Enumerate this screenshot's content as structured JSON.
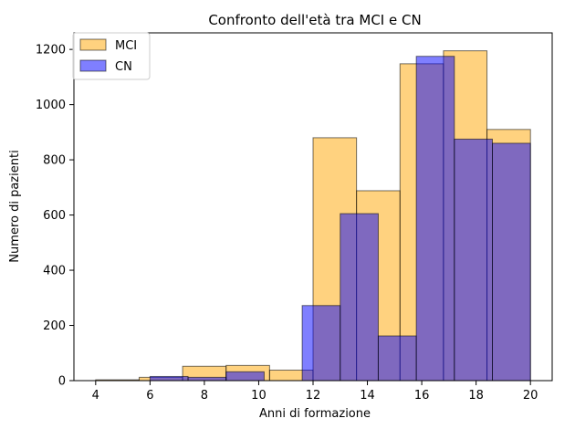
{
  "chart_data": {
    "type": "bar",
    "title": "Confronto dell'età tra MCI e CN",
    "xlabel": "Anni di formazione",
    "ylabel": "Numero di pazienti",
    "xlim": [
      3.2,
      20.8
    ],
    "ylim": [
      0,
      1260
    ],
    "xticks": [
      4,
      6,
      8,
      10,
      12,
      14,
      16,
      18,
      20
    ],
    "yticks": [
      0,
      200,
      400,
      600,
      800,
      1000,
      1200
    ],
    "grid": false,
    "legend_position": "top-left",
    "series": [
      {
        "name": "MCI",
        "color": "#ffa500",
        "opacity": 0.5,
        "bins": [
          {
            "x0": 4.0,
            "x1": 5.6,
            "value": 3
          },
          {
            "x0": 5.6,
            "x1": 7.2,
            "value": 12
          },
          {
            "x0": 7.2,
            "x1": 8.8,
            "value": 52
          },
          {
            "x0": 8.8,
            "x1": 10.4,
            "value": 55
          },
          {
            "x0": 10.4,
            "x1": 12.0,
            "value": 38
          },
          {
            "x0": 12.0,
            "x1": 13.6,
            "value": 880
          },
          {
            "x0": 13.6,
            "x1": 15.2,
            "value": 688
          },
          {
            "x0": 15.2,
            "x1": 16.8,
            "value": 1148
          },
          {
            "x0": 16.8,
            "x1": 18.4,
            "value": 1195
          },
          {
            "x0": 18.4,
            "x1": 20.0,
            "value": 910
          }
        ]
      },
      {
        "name": "CN",
        "color": "#0000ff",
        "opacity": 0.5,
        "bins": [
          {
            "x0": 6.0,
            "x1": 7.4,
            "value": 15
          },
          {
            "x0": 7.4,
            "x1": 8.8,
            "value": 12
          },
          {
            "x0": 8.8,
            "x1": 10.2,
            "value": 32
          },
          {
            "x0": 10.2,
            "x1": 11.6,
            "value": 0
          },
          {
            "x0": 11.6,
            "x1": 13.0,
            "value": 272
          },
          {
            "x0": 13.0,
            "x1": 14.4,
            "value": 605
          },
          {
            "x0": 14.4,
            "x1": 15.8,
            "value": 162
          },
          {
            "x0": 15.8,
            "x1": 17.2,
            "value": 1175
          },
          {
            "x0": 17.2,
            "x1": 18.6,
            "value": 875
          },
          {
            "x0": 18.6,
            "x1": 20.0,
            "value": 860
          }
        ]
      }
    ]
  }
}
